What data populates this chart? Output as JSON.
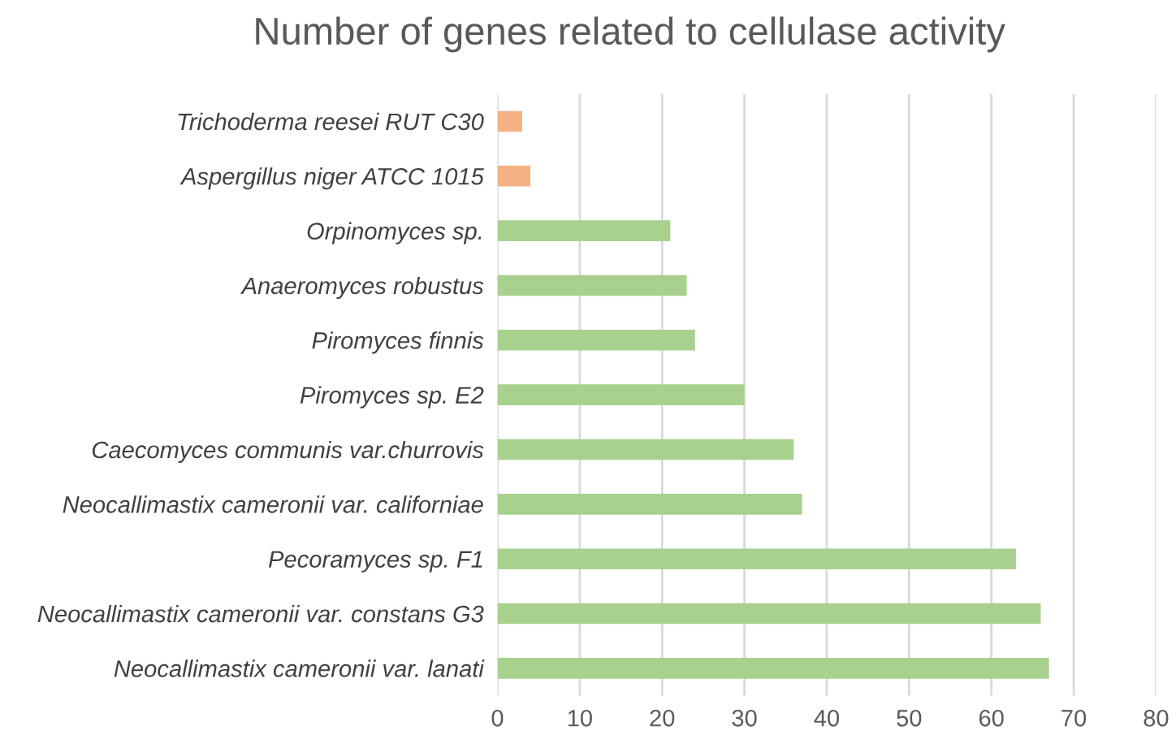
{
  "chart_data": {
    "type": "bar",
    "orientation": "horizontal",
    "title": "Number of genes related to cellulase activity",
    "categories": [
      "Trichoderma reesei RUT C30",
      "Aspergillus niger ATCC 1015",
      "Orpinomyces sp.",
      "Anaeromyces robustus",
      "Piromyces finnis",
      "Piromyces sp. E2",
      "Caecomyces communis var.churrovis",
      "Neocallimastix cameronii var. californiae",
      "Pecoramyces sp. F1",
      "Neocallimastix cameronii var. constans G3",
      "Neocallimastix cameronii var. lanati"
    ],
    "values": [
      3,
      4,
      21,
      23,
      24,
      30,
      36,
      37,
      63,
      66,
      67
    ],
    "colors": [
      "#f4b183",
      "#f4b183",
      "#a9d18e",
      "#a9d18e",
      "#a9d18e",
      "#a9d18e",
      "#a9d18e",
      "#a9d18e",
      "#a9d18e",
      "#a9d18e",
      "#a9d18e"
    ],
    "xlim": [
      0,
      80
    ],
    "xticks": [
      0,
      10,
      20,
      30,
      40,
      50,
      60,
      70,
      80
    ],
    "grid": "x"
  }
}
